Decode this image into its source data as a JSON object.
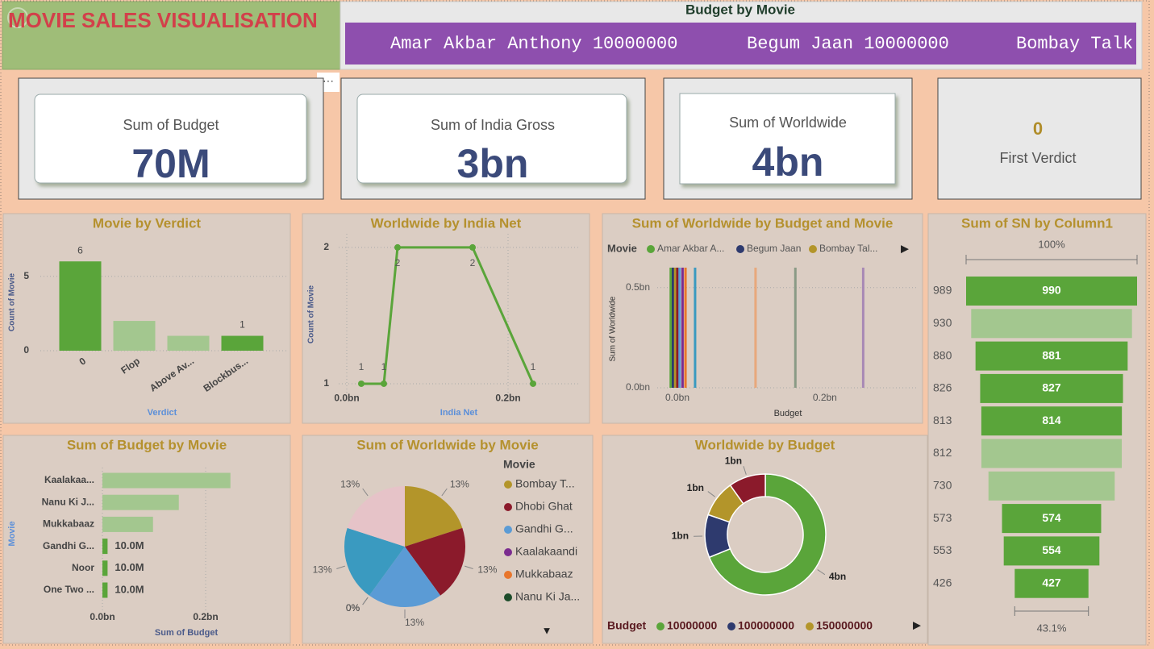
{
  "header": {
    "title": "MOVIE SALES VISUALISATION"
  },
  "ticker": {
    "title": "Budget by Movie",
    "items": [
      "Amar Akbar Anthony 10000000",
      "Begum Jaan 10000000",
      "Bombay Talk"
    ]
  },
  "cards": [
    {
      "label": "Sum of Budget",
      "value": "70M"
    },
    {
      "label": "Sum of India Gross",
      "value": "3bn"
    },
    {
      "label": "Sum of Worldwide",
      "value": "4bn"
    },
    {
      "label": "First Verdict",
      "value": "0"
    }
  ],
  "chart_data": [
    {
      "type": "bar",
      "title": "Movie by Verdict",
      "x_label": "Verdict",
      "y_label": "Count of Movie",
      "categories": [
        "0",
        "Flop",
        "Above Av...",
        "Blockbus..."
      ],
      "values": [
        6,
        2,
        1,
        1
      ],
      "value_labels": [
        "6",
        null,
        null,
        "1"
      ],
      "colors": [
        "#5aa53a",
        "#a3c78f",
        "#a3c78f",
        "#5aa53a"
      ],
      "ylim": [
        0,
        6.5
      ],
      "yticks": [
        0,
        5
      ],
      "grid": true
    },
    {
      "type": "line",
      "title": "Worldwide by India Net",
      "x_label": "India Net",
      "y_label": "Count of Movie",
      "x": [
        0.018,
        0.046,
        0.063,
        0.156,
        0.231
      ],
      "values": [
        1,
        1,
        2,
        2,
        1
      ],
      "color": "#5aa53a",
      "xlim": [
        -0.01,
        0.26
      ],
      "ylim": [
        0.92,
        2.1
      ],
      "xticks": [
        {
          "value": 0,
          "label": "0.0bn"
        },
        {
          "value": 0.2,
          "label": "0.2bn"
        }
      ],
      "yticks": [
        1,
        2
      ],
      "grid": true
    },
    {
      "type": "column",
      "title": "Sum of Worldwide by Budget and Movie",
      "x_label": "Budget",
      "y_label": "Sum of Worldwide",
      "legend_title": "Movie",
      "legend": [
        {
          "name": "Amar Akbar A...",
          "color": "#5aa53a"
        },
        {
          "name": "Begum Jaan",
          "color": "#2e3a6e"
        },
        {
          "name": "Bombay Tal...",
          "color": "#b3952a"
        }
      ],
      "x": [
        -0.009,
        -0.006,
        -0.003,
        0,
        0.003,
        0.007,
        0.011,
        0.024,
        0.106,
        0.16,
        0.252
      ],
      "values": [
        0.6,
        0.6,
        0.6,
        0.6,
        0.6,
        0.6,
        0.6,
        0.6,
        0.6,
        0.6,
        0.6
      ],
      "colors": [
        "#5aa53a",
        "#2e3a6e",
        "#b3952a",
        "#8b1a2b",
        "#5b9bd5",
        "#7b2c8f",
        "#e8762c",
        "#3a9ac0",
        "#e8a87c",
        "#8a9a85",
        "#a889b5"
      ],
      "xlim": [
        -0.02,
        0.28
      ],
      "ylim": [
        0,
        0.62
      ],
      "xticks": [
        {
          "value": 0,
          "label": "0.0bn"
        },
        {
          "value": 0.2,
          "label": "0.2bn"
        }
      ],
      "yticks": [
        {
          "value": 0,
          "label": "0.0bn"
        },
        {
          "value": 0.5,
          "label": "0.5bn"
        }
      ],
      "grid": true
    },
    {
      "type": "funnel",
      "title": "Sum of SN by Column1",
      "categories": [
        "989",
        "930",
        "880",
        "826",
        "813",
        "812",
        "730",
        "573",
        "553",
        "426"
      ],
      "values": [
        990,
        931,
        881,
        827,
        814,
        813,
        731,
        574,
        554,
        427
      ],
      "value_labels": [
        "990",
        null,
        "881",
        "827",
        "814",
        null,
        null,
        "574",
        "554",
        "427"
      ],
      "colors": [
        "#5aa53a",
        "#a3c78f",
        "#5aa53a",
        "#5aa53a",
        "#5aa53a",
        "#a3c78f",
        "#a3c78f",
        "#5aa53a",
        "#5aa53a",
        "#5aa53a"
      ],
      "top_label": "100%",
      "bottom_label": "43.1%"
    },
    {
      "type": "hbar",
      "title": "Sum of Budget by Movie",
      "x_label": "Sum of Budget",
      "y_label": "Movie",
      "categories": [
        "Kaalakaa...",
        "Nanu Ki J...",
        "Mukkabaaz",
        "Gandhi G...",
        "Noor",
        "One Two ..."
      ],
      "values": [
        0.248,
        0.148,
        0.098,
        0.01,
        0.01,
        0.01
      ],
      "value_labels": [
        null,
        null,
        null,
        "10.0M",
        "10.0M",
        "10.0M"
      ],
      "colors": [
        "#a3c78f",
        "#a3c78f",
        "#a3c78f",
        "#5aa53a",
        "#5aa53a",
        "#5aa53a"
      ],
      "xlim": [
        0,
        0.35
      ],
      "xticks": [
        {
          "value": 0,
          "label": "0.0bn"
        },
        {
          "value": 0.2,
          "label": "0.2bn"
        }
      ],
      "grid": true
    },
    {
      "type": "pie",
      "title": "Sum of Worldwide by Movie",
      "values": [
        13,
        13,
        13,
        0,
        0,
        0,
        13,
        13
      ],
      "value_labels": [
        "13%",
        "13%",
        "13%",
        "0%",
        "0%",
        "0%",
        "13%",
        "13%"
      ],
      "colors": [
        "#b3952a",
        "#8b1a2b",
        "#5b9bd5",
        "#a889b5",
        "#e8a87c",
        "#8a9a85",
        "#3a9ac0",
        "#e6c3c8"
      ],
      "legend_title": "Movie",
      "legend": [
        {
          "name": "Bombay T...",
          "color": "#b3952a"
        },
        {
          "name": "Dhobi Ghat",
          "color": "#8b1a2b"
        },
        {
          "name": "Gandhi G...",
          "color": "#5b9bd5"
        },
        {
          "name": "Kaalakaandi",
          "color": "#7b2c8f"
        },
        {
          "name": "Mukkabaaz",
          "color": "#e8762c"
        },
        {
          "name": "Nanu Ki Ja...",
          "color": "#1d4d2b"
        }
      ]
    },
    {
      "type": "donut",
      "title": "Worldwide by Budget",
      "values": [
        4.2,
        0.7,
        0.6,
        0.6
      ],
      "value_labels": [
        "4bn",
        "1bn",
        "1bn",
        "1bn"
      ],
      "colors": [
        "#5aa53a",
        "#2e3a6e",
        "#b3952a",
        "#8b1a2b"
      ],
      "legend_title": "Budget",
      "legend": [
        {
          "name": "10000000",
          "color": "#5aa53a"
        },
        {
          "name": "100000000",
          "color": "#2e3a6e"
        },
        {
          "name": "150000000",
          "color": "#b3952a"
        }
      ]
    }
  ]
}
